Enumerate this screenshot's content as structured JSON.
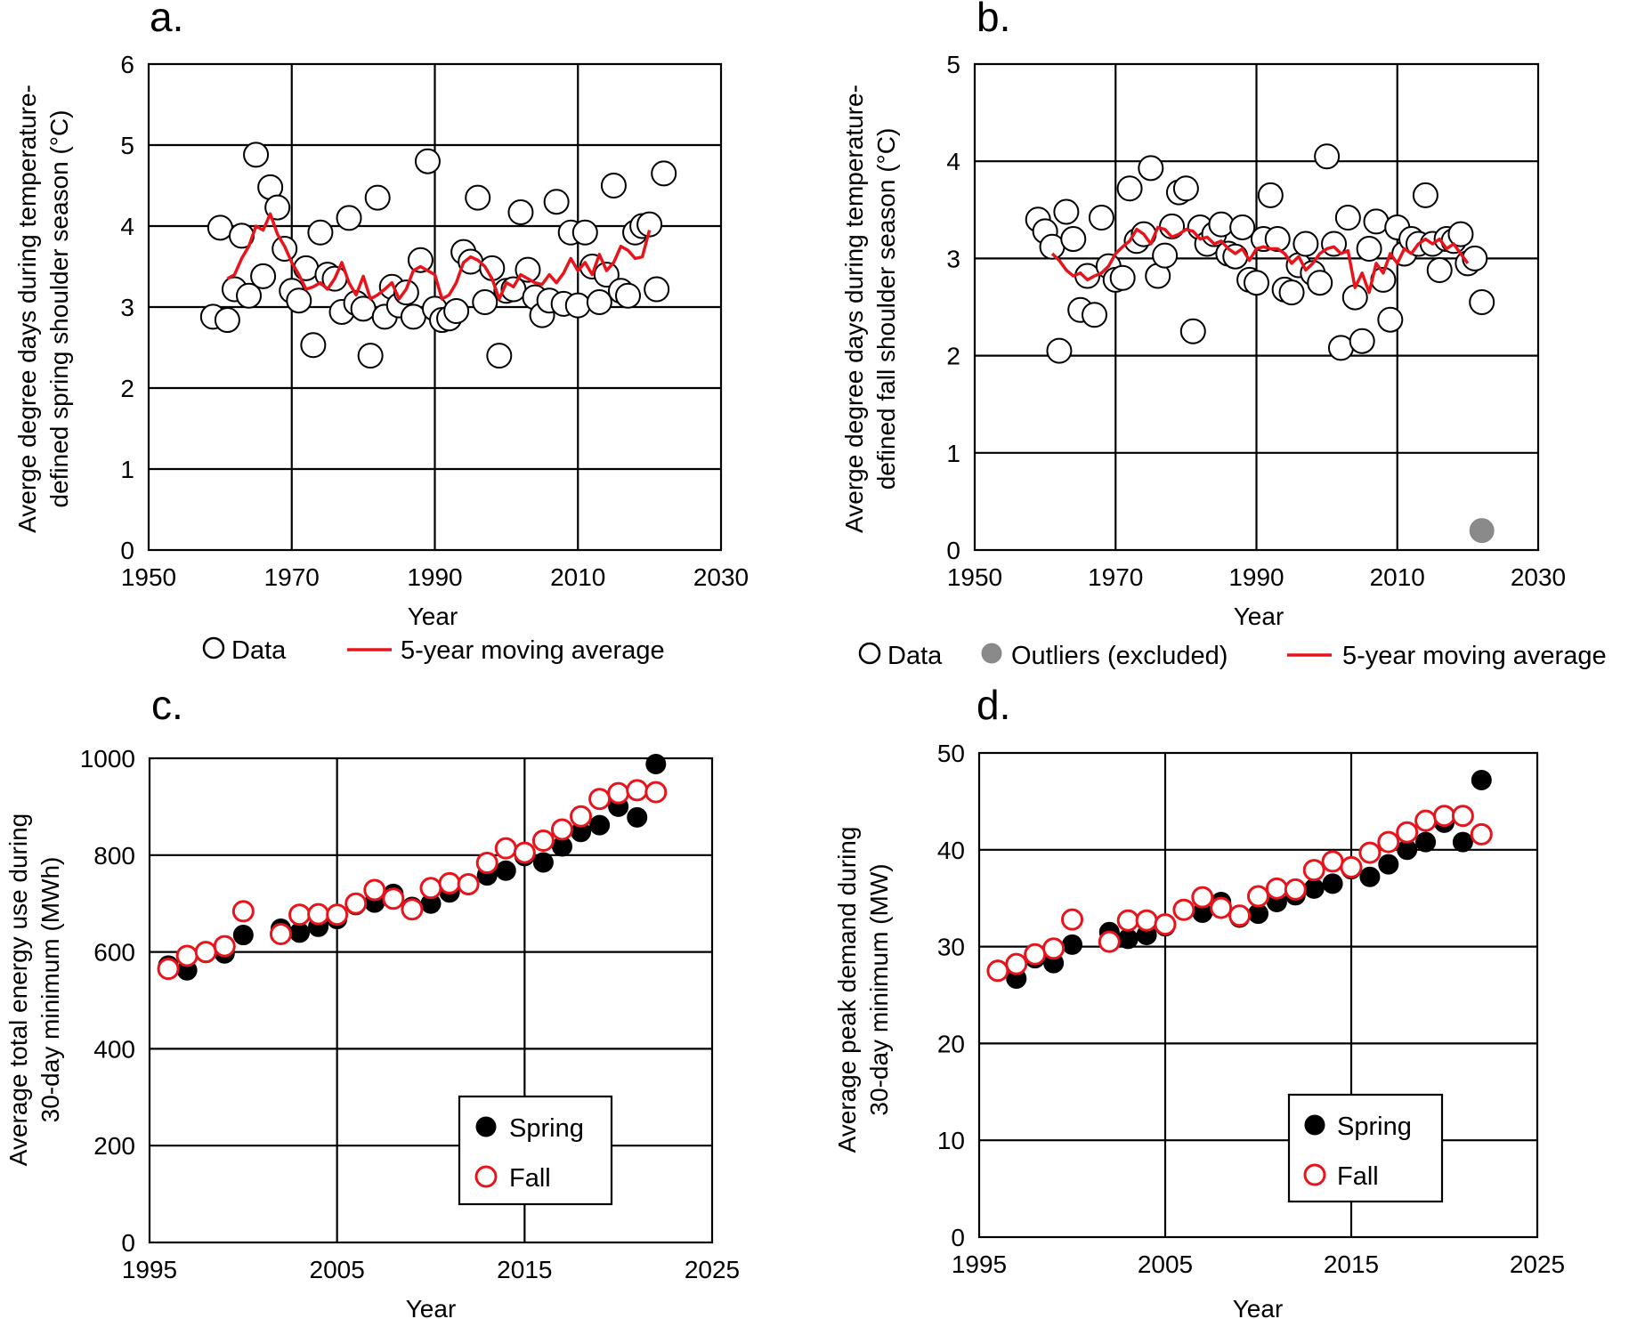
{
  "chart_data": [
    {
      "panel": "a.",
      "type": "scatter",
      "xlabel": "Year",
      "ylabel": [
        "Averge degree days during temperature-",
        "defined spring shoulder season (°C)"
      ],
      "xlim": [
        1950,
        2030
      ],
      "ylim": [
        0,
        6
      ],
      "xticks": [
        1950,
        1970,
        1990,
        2010,
        2030
      ],
      "yticks": [
        0,
        1,
        2,
        3,
        4,
        5,
        6
      ],
      "grid": true,
      "legend_placement": "below",
      "legend": [
        "Data",
        "5-year moving average"
      ],
      "series": [
        {
          "name": "Data",
          "marker": "open-circle",
          "color": "#000000",
          "x": [
            1959,
            1960,
            1961,
            1962,
            1963,
            1964,
            1965,
            1966,
            1967,
            1968,
            1969,
            1970,
            1971,
            1972,
            1973,
            1974,
            1975,
            1976,
            1977,
            1978,
            1979,
            1980,
            1981,
            1982,
            1983,
            1984,
            1985,
            1986,
            1987,
            1988,
            1989,
            1990,
            1991,
            1992,
            1993,
            1994,
            1995,
            1996,
            1997,
            1998,
            1999,
            2000,
            2001,
            2002,
            2003,
            2004,
            2005,
            2006,
            2007,
            2008,
            2009,
            2010,
            2011,
            2012,
            2013,
            2014,
            2015,
            2016,
            2017,
            2018,
            2019,
            2020,
            2021,
            2022
          ],
          "y": [
            2.88,
            3.98,
            2.84,
            3.22,
            3.88,
            3.14,
            4.88,
            3.38,
            4.48,
            4.23,
            3.72,
            3.2,
            3.08,
            3.48,
            2.53,
            3.92,
            3.4,
            3.35,
            2.94,
            4.1,
            3.05,
            2.98,
            2.4,
            4.35,
            2.88,
            3.25,
            3.02,
            3.18,
            2.88,
            3.58,
            4.8,
            2.98,
            2.84,
            2.86,
            2.95,
            3.68,
            3.56,
            4.35,
            3.06,
            3.48,
            2.4,
            3.2,
            3.22,
            4.17,
            3.46,
            3.12,
            2.9,
            3.08,
            4.3,
            3.04,
            3.92,
            3.02,
            3.92,
            3.5,
            3.06,
            3.4,
            4.5,
            3.2,
            3.14,
            3.92,
            4.0,
            4.02,
            3.22,
            4.65
          ]
        },
        {
          "name": "5-year moving average",
          "line": true,
          "color": "#e8141b",
          "x": [
            1961,
            1962,
            1963,
            1964,
            1965,
            1966,
            1967,
            1968,
            1969,
            1970,
            1971,
            1972,
            1973,
            1974,
            1975,
            1976,
            1977,
            1978,
            1979,
            1980,
            1981,
            1982,
            1983,
            1984,
            1985,
            1986,
            1987,
            1988,
            1989,
            1990,
            1991,
            1992,
            1993,
            1994,
            1995,
            1996,
            1997,
            1998,
            1999,
            2000,
            2001,
            2002,
            2003,
            2004,
            2005,
            2006,
            2007,
            2008,
            2009,
            2010,
            2011,
            2012,
            2013,
            2014,
            2015,
            2016,
            2017,
            2018,
            2019,
            2020
          ],
          "y": [
            3.35,
            3.4,
            3.6,
            3.75,
            4.0,
            3.95,
            4.15,
            3.9,
            3.75,
            3.55,
            3.4,
            3.22,
            3.25,
            3.3,
            3.22,
            3.35,
            3.55,
            3.3,
            3.15,
            3.38,
            3.1,
            3.15,
            3.22,
            3.3,
            3.1,
            3.22,
            3.45,
            3.5,
            3.45,
            3.4,
            3.1,
            3.15,
            3.3,
            3.55,
            3.62,
            3.58,
            3.5,
            3.35,
            3.1,
            3.3,
            3.25,
            3.4,
            3.35,
            3.3,
            3.28,
            3.4,
            3.3,
            3.42,
            3.6,
            3.45,
            3.55,
            3.4,
            3.65,
            3.45,
            3.55,
            3.75,
            3.7,
            3.6,
            3.62,
            3.95
          ]
        }
      ]
    },
    {
      "panel": "b.",
      "type": "scatter",
      "xlabel": "Year",
      "ylabel": [
        "Averge degree days during temperature-",
        "defined fall shoulder season (°C)"
      ],
      "xlim": [
        1950,
        2030
      ],
      "ylim": [
        0,
        5
      ],
      "xticks": [
        1950,
        1970,
        1990,
        2010,
        2030
      ],
      "yticks": [
        0,
        1,
        2,
        3,
        4,
        5
      ],
      "grid": true,
      "legend_placement": "below",
      "legend": [
        "Data",
        "Outliers (excluded)",
        "5-year moving average"
      ],
      "series": [
        {
          "name": "Data",
          "marker": "open-circle",
          "color": "#000000",
          "x": [
            1959,
            1960,
            1961,
            1962,
            1963,
            1964,
            1965,
            1966,
            1967,
            1968,
            1969,
            1970,
            1971,
            1972,
            1973,
            1974,
            1975,
            1976,
            1977,
            1978,
            1979,
            1980,
            1981,
            1982,
            1983,
            1984,
            1985,
            1986,
            1987,
            1988,
            1989,
            1990,
            1991,
            1992,
            1993,
            1994,
            1995,
            1996,
            1997,
            1998,
            1999,
            2000,
            2001,
            2002,
            2003,
            2004,
            2005,
            2006,
            2007,
            2008,
            2009,
            2010,
            2011,
            2012,
            2013,
            2014,
            2015,
            2016,
            2017,
            2018,
            2019,
            2020,
            2021
          ],
          "y": [
            3.4,
            3.28,
            3.12,
            2.05,
            3.48,
            3.2,
            2.47,
            2.82,
            2.42,
            3.42,
            2.92,
            2.78,
            2.8,
            3.72,
            3.18,
            3.25,
            3.93,
            2.82,
            3.03,
            3.33,
            3.68,
            3.72,
            2.25,
            3.32,
            3.15,
            3.25,
            3.35,
            3.05,
            3.02,
            3.32,
            2.78,
            2.75,
            3.2,
            3.65,
            3.2,
            2.68,
            2.65,
            2.93,
            3.15,
            2.85,
            2.75,
            4.05,
            3.15,
            2.08,
            3.42,
            2.6,
            2.15,
            3.1,
            3.38,
            2.78,
            2.37,
            3.32,
            3.05,
            3.2,
            3.15,
            3.65,
            3.15,
            2.88,
            3.2,
            3.18,
            3.25,
            2.95,
            3.0
          ]
        },
        {
          "name": "Outliers (excluded)",
          "marker": "filled-circle",
          "color": "#8a8a8a",
          "x": [
            2022
          ],
          "y": [
            0.2
          ]
        },
        {
          "name": "Data",
          "marker": "open-circle",
          "color": "#000000",
          "x": [
            2022
          ],
          "y": [
            2.55
          ]
        },
        {
          "name": "5-year moving average",
          "line": true,
          "color": "#e8141b",
          "x": [
            1961,
            1962,
            1963,
            1964,
            1965,
            1966,
            1967,
            1968,
            1969,
            1970,
            1971,
            1972,
            1973,
            1974,
            1975,
            1976,
            1977,
            1978,
            1979,
            1980,
            1981,
            1982,
            1983,
            1984,
            1985,
            1986,
            1987,
            1988,
            1989,
            1990,
            1991,
            1992,
            1993,
            1994,
            1995,
            1996,
            1997,
            1998,
            1999,
            2000,
            2001,
            2002,
            2003,
            2004,
            2005,
            2006,
            2007,
            2008,
            2009,
            2010,
            2011,
            2012,
            2013,
            2014,
            2015,
            2016,
            2017,
            2018,
            2019,
            2020
          ],
          "y": [
            3.05,
            2.98,
            2.88,
            2.82,
            2.85,
            2.78,
            2.82,
            2.85,
            2.92,
            3.05,
            3.12,
            3.18,
            3.3,
            3.25,
            3.15,
            3.32,
            3.3,
            3.22,
            3.25,
            3.3,
            3.28,
            3.2,
            3.22,
            3.15,
            3.18,
            3.1,
            3.05,
            3.1,
            2.98,
            3.1,
            3.12,
            3.1,
            3.1,
            3.05,
            2.95,
            3.02,
            2.88,
            2.95,
            3.05,
            3.1,
            3.12,
            3.05,
            3.08,
            2.7,
            2.85,
            2.65,
            2.95,
            2.85,
            3.05,
            2.95,
            3.1,
            3.05,
            3.15,
            3.2,
            3.15,
            3.2,
            3.1,
            3.15,
            3.05,
            2.95
          ]
        }
      ]
    },
    {
      "panel": "c.",
      "type": "scatter",
      "xlabel": "Year",
      "ylabel": [
        "Average total energy use during",
        "30-day minimum (MWh)"
      ],
      "xlim": [
        1995,
        2025
      ],
      "ylim": [
        0,
        1000
      ],
      "xticks": [
        1995,
        2005,
        2015,
        2025
      ],
      "yticks": [
        0,
        200,
        400,
        600,
        800,
        1000
      ],
      "grid": true,
      "legend_placement": "lower-right",
      "legend": [
        "Spring",
        "Fall"
      ],
      "series": [
        {
          "name": "Spring",
          "marker": "filled-circle",
          "color": "#000000",
          "x": [
            1996,
            1997,
            1998,
            1999,
            2000,
            2002,
            2003,
            2004,
            2005,
            2006,
            2007,
            2008,
            2009,
            2010,
            2011,
            2012,
            2013,
            2014,
            2015,
            2016,
            2017,
            2018,
            2019,
            2020,
            2021,
            2022
          ],
          "y": [
            572,
            562,
            598,
            597,
            635,
            648,
            640,
            652,
            668,
            697,
            702,
            720,
            693,
            700,
            723,
            738,
            758,
            768,
            798,
            785,
            818,
            848,
            862,
            900,
            878,
            988
          ]
        },
        {
          "name": "Fall",
          "marker": "open-circle",
          "color": "#e8141b",
          "x": [
            1996,
            1997,
            1998,
            1999,
            2000,
            2002,
            2003,
            2004,
            2005,
            2006,
            2007,
            2008,
            2009,
            2010,
            2011,
            2012,
            2013,
            2014,
            2015,
            2016,
            2017,
            2018,
            2019,
            2020,
            2021,
            2022
          ],
          "y": [
            565,
            592,
            600,
            612,
            684,
            637,
            677,
            678,
            677,
            700,
            728,
            710,
            688,
            732,
            742,
            740,
            784,
            814,
            805,
            830,
            853,
            880,
            916,
            928,
            934,
            930
          ]
        }
      ]
    },
    {
      "panel": "d.",
      "type": "scatter",
      "xlabel": "Year",
      "ylabel": [
        "Average peak demand during",
        "30-day minimum (MW)"
      ],
      "xlim": [
        1995,
        2025
      ],
      "ylim": [
        0,
        50
      ],
      "xticks": [
        1995,
        2005,
        2015,
        2025
      ],
      "yticks": [
        0,
        10,
        20,
        30,
        40,
        50
      ],
      "grid": true,
      "legend_placement": "lower-right",
      "legend": [
        "Spring",
        "Fall"
      ],
      "series": [
        {
          "name": "Spring",
          "marker": "filled-circle",
          "color": "#000000",
          "x": [
            1996,
            1997,
            1998,
            1999,
            2000,
            2002,
            2003,
            2004,
            2005,
            2006,
            2007,
            2008,
            2009,
            2010,
            2011,
            2012,
            2013,
            2014,
            2015,
            2016,
            2017,
            2018,
            2019,
            2020,
            2021,
            2022
          ],
          "y": [
            27.6,
            26.7,
            28.8,
            28.3,
            30.2,
            31.5,
            30.8,
            31.2,
            32.1,
            33.8,
            33.5,
            34.6,
            33.0,
            33.4,
            34.6,
            35.3,
            36.0,
            36.5,
            38.0,
            37.2,
            38.5,
            40.0,
            40.8,
            42.8,
            40.8,
            47.2
          ]
        },
        {
          "name": "Fall",
          "marker": "open-circle",
          "color": "#e8141b",
          "x": [
            1996,
            1997,
            1998,
            1999,
            2000,
            2002,
            2003,
            2004,
            2005,
            2006,
            2007,
            2008,
            2009,
            2010,
            2011,
            2012,
            2013,
            2014,
            2015,
            2016,
            2017,
            2018,
            2019,
            2020,
            2021,
            2022
          ],
          "y": [
            27.5,
            28.2,
            29.2,
            29.8,
            32.8,
            30.5,
            32.7,
            32.7,
            32.3,
            33.8,
            35.1,
            34.0,
            33.2,
            35.2,
            36.0,
            35.9,
            37.9,
            38.8,
            38.2,
            39.7,
            40.8,
            41.8,
            43.0,
            43.5,
            43.5,
            41.6
          ]
        }
      ]
    }
  ]
}
